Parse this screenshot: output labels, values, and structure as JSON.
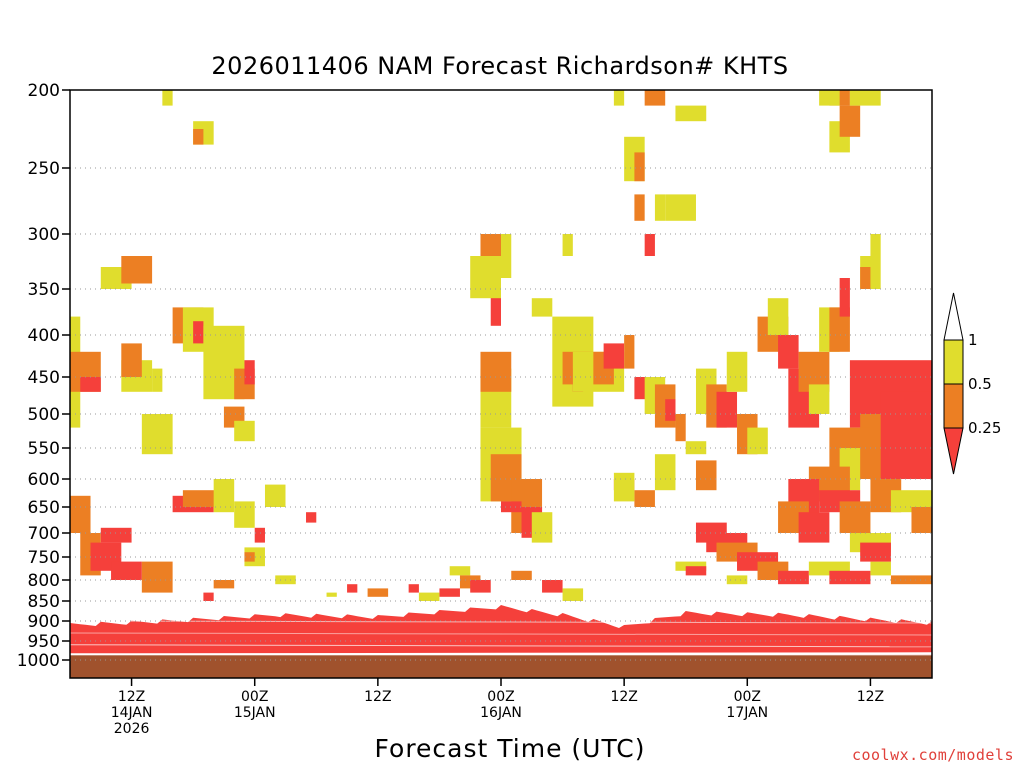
{
  "chart_data": {
    "type": "heatmap",
    "title": "2026011406 NAM Forecast Richardson# KHTS",
    "xlabel": "Forecast Time (UTC)",
    "ylabel": "",
    "credit": "coolwx.com/models",
    "y_axis": {
      "scale": "pressure (hPa), reversed, log-like",
      "range": [
        1000,
        200
      ],
      "ticks": [
        "200",
        "250",
        "300",
        "350",
        "400",
        "450",
        "500",
        "550",
        "600",
        "650",
        "700",
        "750",
        "800",
        "850",
        "900",
        "950",
        "1000"
      ]
    },
    "x_axis": {
      "range_hours_from_init": [
        0,
        84
      ],
      "ticks": [
        {
          "hour": 6,
          "lines": [
            "12Z",
            "14JAN",
            "2026"
          ]
        },
        {
          "hour": 18,
          "lines": [
            "00Z",
            "15JAN"
          ]
        },
        {
          "hour": 30,
          "lines": [
            "12Z"
          ]
        },
        {
          "hour": 42,
          "lines": [
            "00Z",
            "16JAN"
          ]
        },
        {
          "hour": 54,
          "lines": [
            "12Z"
          ]
        },
        {
          "hour": 66,
          "lines": [
            "00Z",
            "17JAN"
          ]
        },
        {
          "hour": 78,
          "lines": [
            "12Z"
          ]
        }
      ]
    },
    "grid": true,
    "colorbar": {
      "levels": [
        "1",
        "0.5",
        "0.25"
      ],
      "bins": [
        {
          "label": "> 1",
          "color": "#ffffff"
        },
        {
          "label": "0.5 - 1",
          "color": "#e0dd2d"
        },
        {
          "label": "0.25 - 0.5",
          "color": "#ec7f23"
        },
        {
          "label": "< 0.25",
          "color": "#f5403b"
        }
      ]
    },
    "colors": {
      "yellow": "#e0dd2d",
      "orange": "#ec7f23",
      "red": "#f5403b",
      "ground": "#a0522d"
    },
    "boundary_layer": {
      "description": "Ri < 0.25 throughout near-surface layer for all forecast hours",
      "top_hpa_by_hour": [
        [
          0,
          905
        ],
        [
          10,
          895
        ],
        [
          20,
          880
        ],
        [
          30,
          885
        ],
        [
          42,
          860
        ],
        [
          48,
          880
        ],
        [
          54,
          910
        ],
        [
          60,
          875
        ],
        [
          70,
          880
        ],
        [
          84,
          900
        ]
      ],
      "ground_hpa": 985
    },
    "cells": [
      [
        0,
        1,
        380,
        520,
        "yellow"
      ],
      [
        0,
        3,
        420,
        470,
        "orange"
      ],
      [
        1,
        3,
        450,
        470,
        "red"
      ],
      [
        0,
        2,
        630,
        700,
        "orange"
      ],
      [
        1,
        3,
        700,
        790,
        "orange"
      ],
      [
        2,
        5,
        720,
        780,
        "red"
      ],
      [
        3,
        6,
        690,
        720,
        "red"
      ],
      [
        4,
        7,
        760,
        800,
        "red"
      ],
      [
        7,
        10,
        760,
        830,
        "orange"
      ],
      [
        5,
        8,
        430,
        470,
        "yellow"
      ],
      [
        5,
        7,
        410,
        450,
        "orange"
      ],
      [
        8,
        9,
        440,
        470,
        "yellow"
      ],
      [
        3,
        6,
        330,
        350,
        "yellow"
      ],
      [
        5,
        8,
        320,
        345,
        "orange"
      ],
      [
        7,
        10,
        500,
        560,
        "yellow"
      ],
      [
        9,
        10,
        200,
        210,
        "yellow"
      ],
      [
        12,
        14,
        220,
        235,
        "yellow"
      ],
      [
        12,
        13,
        225,
        235,
        "orange"
      ],
      [
        10,
        13,
        370,
        410,
        "orange"
      ],
      [
        11,
        14,
        370,
        420,
        "yellow"
      ],
      [
        12,
        13,
        385,
        410,
        "red"
      ],
      [
        13,
        17,
        390,
        480,
        "yellow"
      ],
      [
        16,
        18,
        440,
        480,
        "orange"
      ],
      [
        17,
        18,
        430,
        460,
        "red"
      ],
      [
        15,
        17,
        490,
        520,
        "orange"
      ],
      [
        16,
        18,
        510,
        540,
        "yellow"
      ],
      [
        10,
        14,
        630,
        660,
        "red"
      ],
      [
        11,
        15,
        620,
        650,
        "orange"
      ],
      [
        14,
        16,
        600,
        660,
        "yellow"
      ],
      [
        16,
        18,
        640,
        690,
        "yellow"
      ],
      [
        18,
        19,
        690,
        720,
        "red"
      ],
      [
        19,
        21,
        610,
        650,
        "yellow"
      ],
      [
        23,
        24,
        660,
        680,
        "red"
      ],
      [
        17,
        19,
        730,
        770,
        "yellow"
      ],
      [
        17,
        18,
        740,
        760,
        "orange"
      ],
      [
        40,
        43,
        440,
        520,
        "yellow"
      ],
      [
        40,
        43,
        420,
        470,
        "orange"
      ],
      [
        41,
        42,
        350,
        390,
        "red"
      ],
      [
        40,
        42,
        300,
        350,
        "orange"
      ],
      [
        39,
        42,
        320,
        360,
        "yellow"
      ],
      [
        42,
        43,
        300,
        340,
        "yellow"
      ],
      [
        45,
        47,
        360,
        380,
        "yellow"
      ],
      [
        48,
        49,
        300,
        320,
        "yellow"
      ],
      [
        40,
        44,
        520,
        640,
        "yellow"
      ],
      [
        41,
        44,
        560,
        640,
        "orange"
      ],
      [
        43,
        46,
        600,
        700,
        "orange"
      ],
      [
        44,
        46,
        650,
        710,
        "red"
      ],
      [
        42,
        44,
        640,
        660,
        "red"
      ],
      [
        45,
        47,
        660,
        720,
        "yellow"
      ],
      [
        47,
        51,
        380,
        490,
        "yellow"
      ],
      [
        48,
        51,
        420,
        460,
        "orange"
      ],
      [
        49,
        50,
        440,
        470,
        "red"
      ],
      [
        49,
        54,
        420,
        470,
        "yellow"
      ],
      [
        51,
        53,
        420,
        460,
        "orange"
      ],
      [
        52,
        54,
        410,
        440,
        "red"
      ],
      [
        54,
        55,
        400,
        440,
        "orange"
      ],
      [
        55,
        57,
        450,
        480,
        "red"
      ],
      [
        56,
        58,
        450,
        500,
        "yellow"
      ],
      [
        57,
        59,
        460,
        520,
        "orange"
      ],
      [
        58,
        59,
        480,
        510,
        "red"
      ],
      [
        59,
        60,
        500,
        540,
        "orange"
      ],
      [
        53,
        55,
        600,
        620,
        "red"
      ],
      [
        55,
        57,
        620,
        650,
        "orange"
      ],
      [
        53,
        55,
        590,
        640,
        "yellow"
      ],
      [
        57,
        59,
        560,
        620,
        "yellow"
      ],
      [
        60,
        62,
        540,
        560,
        "yellow"
      ],
      [
        61,
        63,
        570,
        620,
        "orange"
      ],
      [
        54,
        56,
        230,
        260,
        "yellow"
      ],
      [
        55,
        56,
        240,
        260,
        "orange"
      ],
      [
        55,
        56,
        270,
        290,
        "orange"
      ],
      [
        56,
        57,
        300,
        320,
        "red"
      ],
      [
        57,
        58,
        270,
        290,
        "yellow"
      ],
      [
        58,
        61,
        270,
        290,
        "yellow"
      ],
      [
        59,
        62,
        210,
        220,
        "yellow"
      ],
      [
        56,
        58,
        200,
        210,
        "orange"
      ],
      [
        53,
        54,
        200,
        210,
        "yellow"
      ],
      [
        61,
        63,
        440,
        500,
        "yellow"
      ],
      [
        62,
        64,
        460,
        520,
        "orange"
      ],
      [
        63,
        65,
        470,
        520,
        "red"
      ],
      [
        64,
        66,
        420,
        470,
        "yellow"
      ],
      [
        65,
        67,
        500,
        560,
        "orange"
      ],
      [
        66,
        68,
        520,
        560,
        "yellow"
      ],
      [
        67,
        70,
        380,
        420,
        "orange"
      ],
      [
        68,
        70,
        360,
        400,
        "yellow"
      ],
      [
        69,
        71,
        400,
        440,
        "red"
      ],
      [
        70,
        73,
        440,
        520,
        "red"
      ],
      [
        71,
        74,
        420,
        470,
        "orange"
      ],
      [
        72,
        74,
        460,
        500,
        "yellow"
      ],
      [
        73,
        75,
        370,
        420,
        "yellow"
      ],
      [
        74,
        76,
        370,
        420,
        "orange"
      ],
      [
        75,
        76,
        340,
        380,
        "red"
      ],
      [
        74,
        76,
        220,
        240,
        "yellow"
      ],
      [
        75,
        77,
        210,
        230,
        "orange"
      ],
      [
        74,
        76,
        200,
        210,
        "orange"
      ],
      [
        73,
        75,
        200,
        210,
        "yellow"
      ],
      [
        76,
        79,
        200,
        210,
        "yellow"
      ],
      [
        77,
        79,
        320,
        350,
        "yellow"
      ],
      [
        77,
        78,
        330,
        350,
        "orange"
      ],
      [
        78,
        79,
        300,
        320,
        "yellow"
      ],
      [
        76,
        84,
        430,
        520,
        "red"
      ],
      [
        77,
        84,
        500,
        600,
        "orange"
      ],
      [
        79,
        84,
        470,
        600,
        "red"
      ],
      [
        74,
        78,
        520,
        600,
        "orange"
      ],
      [
        75,
        77,
        550,
        620,
        "yellow"
      ],
      [
        72,
        76,
        580,
        640,
        "orange"
      ],
      [
        70,
        73,
        600,
        680,
        "red"
      ],
      [
        69,
        72,
        640,
        700,
        "orange"
      ],
      [
        71,
        74,
        660,
        720,
        "red"
      ],
      [
        73,
        77,
        620,
        660,
        "red"
      ],
      [
        75,
        78,
        640,
        700,
        "orange"
      ],
      [
        78,
        81,
        600,
        660,
        "orange"
      ],
      [
        80,
        84,
        620,
        660,
        "yellow"
      ],
      [
        82,
        84,
        650,
        700,
        "orange"
      ],
      [
        61,
        64,
        680,
        720,
        "red"
      ],
      [
        62,
        66,
        700,
        740,
        "red"
      ],
      [
        63,
        67,
        720,
        760,
        "orange"
      ],
      [
        65,
        69,
        740,
        780,
        "red"
      ],
      [
        67,
        70,
        760,
        800,
        "orange"
      ],
      [
        69,
        72,
        780,
        810,
        "red"
      ],
      [
        72,
        76,
        760,
        790,
        "yellow"
      ],
      [
        74,
        78,
        780,
        810,
        "red"
      ],
      [
        78,
        80,
        760,
        790,
        "yellow"
      ],
      [
        80,
        84,
        790,
        810,
        "orange"
      ],
      [
        76,
        80,
        700,
        740,
        "yellow"
      ],
      [
        77,
        80,
        720,
        760,
        "red"
      ],
      [
        59,
        62,
        760,
        780,
        "yellow"
      ],
      [
        60,
        62,
        770,
        790,
        "red"
      ],
      [
        64,
        66,
        790,
        810,
        "yellow"
      ],
      [
        37,
        39,
        770,
        790,
        "yellow"
      ],
      [
        38,
        40,
        790,
        820,
        "orange"
      ],
      [
        39,
        41,
        800,
        830,
        "red"
      ],
      [
        36,
        38,
        820,
        840,
        "red"
      ],
      [
        34,
        36,
        830,
        850,
        "yellow"
      ],
      [
        43,
        45,
        780,
        800,
        "orange"
      ],
      [
        46,
        48,
        800,
        830,
        "red"
      ],
      [
        48,
        50,
        820,
        850,
        "yellow"
      ],
      [
        33,
        34,
        810,
        830,
        "red"
      ],
      [
        27,
        28,
        810,
        830,
        "red"
      ],
      [
        29,
        31,
        820,
        840,
        "orange"
      ],
      [
        25,
        26,
        830,
        840,
        "yellow"
      ],
      [
        20,
        22,
        790,
        810,
        "yellow"
      ],
      [
        14,
        16,
        800,
        820,
        "orange"
      ],
      [
        13,
        14,
        830,
        850,
        "red"
      ]
    ]
  },
  "axis": {
    "y_tick_labels": [
      "200",
      "250",
      "300",
      "350",
      "400",
      "450",
      "500",
      "550",
      "600",
      "650",
      "700",
      "750",
      "800",
      "850",
      "900",
      "950",
      "1000"
    ],
    "colorbar_labels": [
      "1",
      "0.5",
      "0.25"
    ]
  }
}
